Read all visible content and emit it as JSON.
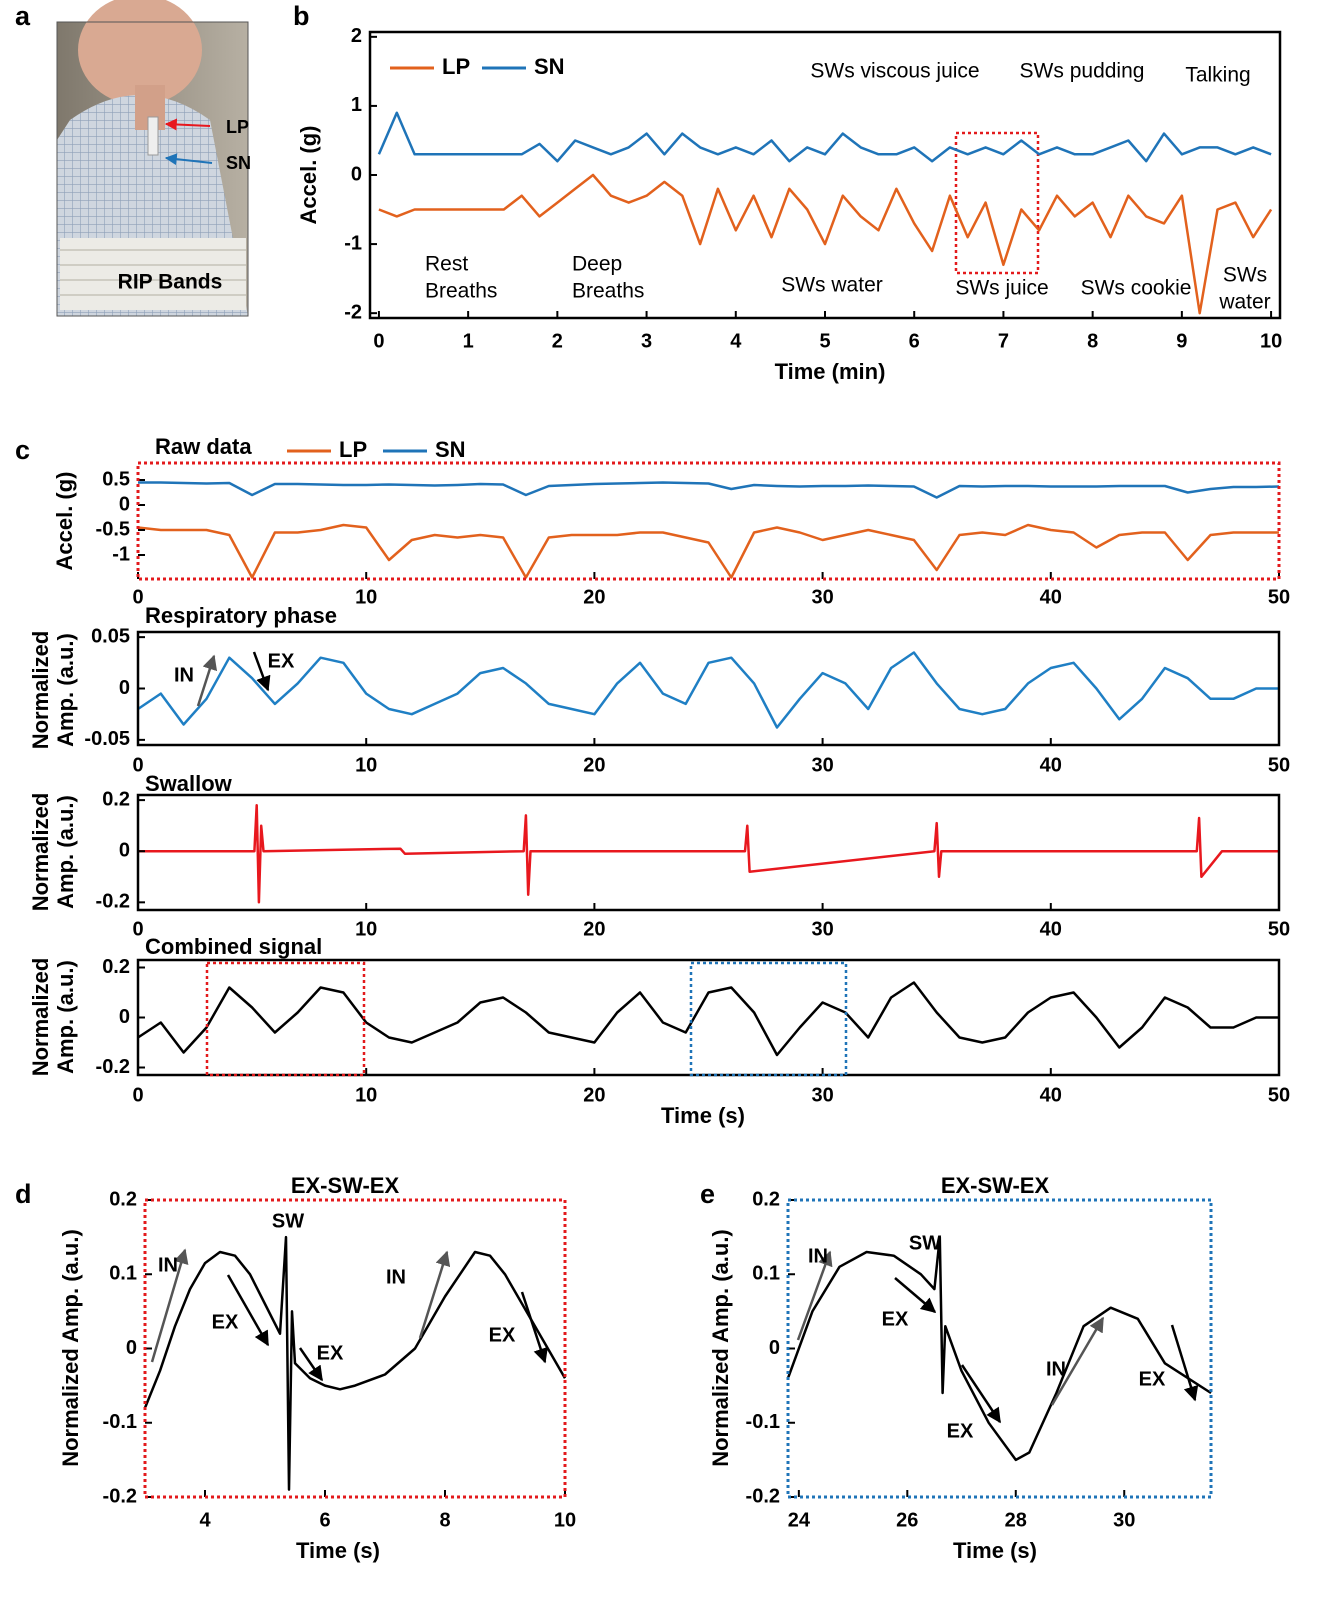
{
  "photo": {
    "panel_label": "a",
    "labels": [
      "LP",
      "SN",
      "RIP Bands"
    ]
  },
  "chart_data": [
    {
      "type": "line",
      "panel_label": "b",
      "x_label": "Time (min)",
      "y_label": "Accel. (g)",
      "x": [
        0,
        0.2,
        0.4,
        0.6,
        0.8,
        1,
        1.2,
        1.4,
        1.6,
        1.8,
        2,
        2.2,
        2.4,
        2.6,
        2.8,
        3,
        3.2,
        3.4,
        3.6,
        3.8,
        4,
        4.2,
        4.4,
        4.6,
        4.8,
        5,
        5.2,
        5.4,
        5.6,
        5.8,
        6,
        6.2,
        6.4,
        6.6,
        6.8,
        7,
        7.2,
        7.4,
        7.6,
        7.8,
        8,
        8.2,
        8.4,
        8.6,
        8.8,
        9,
        9.2,
        9.4,
        9.6,
        9.8,
        10
      ],
      "series": [
        {
          "name": "LP",
          "color": "#e2611d",
          "values": [
            -0.5,
            -0.6,
            -0.5,
            -0.5,
            -0.5,
            -0.5,
            -0.5,
            -0.5,
            -0.3,
            -0.6,
            -0.4,
            -0.2,
            0,
            -0.3,
            -0.4,
            -0.3,
            -0.1,
            -0.3,
            -1.0,
            -0.2,
            -0.8,
            -0.3,
            -0.9,
            -0.2,
            -0.5,
            -1.0,
            -0.3,
            -0.6,
            -0.8,
            -0.2,
            -0.7,
            -1.1,
            -0.3,
            -0.9,
            -0.4,
            -1.3,
            -0.5,
            -0.8,
            -0.3,
            -0.6,
            -0.4,
            -0.9,
            -0.3,
            -0.6,
            -0.7,
            -0.3,
            -2.0,
            -0.5,
            -0.4,
            -0.9,
            -0.5
          ]
        },
        {
          "name": "SN",
          "color": "#1f74b8",
          "values": [
            0.3,
            0.9,
            0.3,
            0.3,
            0.3,
            0.3,
            0.3,
            0.3,
            0.3,
            0.45,
            0.2,
            0.5,
            0.4,
            0.3,
            0.4,
            0.6,
            0.3,
            0.6,
            0.4,
            0.3,
            0.4,
            0.3,
            0.5,
            0.2,
            0.4,
            0.3,
            0.6,
            0.4,
            0.3,
            0.3,
            0.4,
            0.2,
            0.4,
            0.3,
            0.4,
            0.3,
            0.5,
            0.3,
            0.4,
            0.3,
            0.3,
            0.4,
            0.5,
            0.2,
            0.6,
            0.3,
            0.4,
            0.4,
            0.3,
            0.4,
            0.3
          ]
        }
      ],
      "xlim": [
        -0.1,
        10.1
      ],
      "ylim": [
        -2.07,
        2.07
      ],
      "xticks": [
        0,
        1,
        2,
        3,
        4,
        5,
        6,
        7,
        8,
        9,
        10
      ],
      "yticks": [
        -2,
        -1,
        0,
        1,
        2
      ],
      "annotations": [
        {
          "lines": [
            "SWs viscous juice"
          ]
        },
        {
          "lines": [
            "SWs pudding"
          ]
        },
        {
          "lines": [
            "Talking"
          ]
        },
        {
          "lines": [
            "Rest",
            "Breaths"
          ]
        },
        {
          "lines": [
            "Deep",
            "Breaths"
          ]
        },
        {
          "lines": [
            "SWs water"
          ]
        },
        {
          "lines": [
            "SWs juice"
          ]
        },
        {
          "lines": [
            "SWs cookie"
          ]
        },
        {
          "lines": [
            "SWs",
            "water"
          ]
        }
      ]
    },
    {
      "type": "line",
      "panel_label": "c",
      "title": "Raw data",
      "y_label": "Accel. (g)",
      "x": [
        0,
        1,
        2,
        3,
        4,
        5,
        6,
        7,
        8,
        9,
        10,
        11,
        12,
        13,
        14,
        15,
        16,
        17,
        18,
        19,
        20,
        21,
        22,
        23,
        24,
        25,
        26,
        27,
        28,
        29,
        30,
        31,
        32,
        33,
        34,
        35,
        36,
        37,
        38,
        39,
        40,
        41,
        42,
        43,
        44,
        45,
        46,
        47,
        48,
        49,
        50
      ],
      "series": [
        {
          "name": "LP",
          "color": "#e2611d",
          "values": [
            -0.45,
            -0.5,
            -0.5,
            -0.5,
            -0.6,
            -1.45,
            -0.55,
            -0.55,
            -0.5,
            -0.4,
            -0.45,
            -1.1,
            -0.7,
            -0.6,
            -0.65,
            -0.6,
            -0.65,
            -1.45,
            -0.65,
            -0.6,
            -0.6,
            -0.6,
            -0.55,
            -0.55,
            -0.65,
            -0.75,
            -1.45,
            -0.55,
            -0.45,
            -0.55,
            -0.7,
            -0.6,
            -0.5,
            -0.6,
            -0.7,
            -1.3,
            -0.6,
            -0.55,
            -0.6,
            -0.4,
            -0.5,
            -0.55,
            -0.85,
            -0.6,
            -0.55,
            -0.55,
            -1.1,
            -0.6,
            -0.55,
            -0.55,
            -0.55
          ]
        },
        {
          "name": "SN",
          "color": "#1f74b8",
          "values": [
            0.45,
            0.45,
            0.44,
            0.43,
            0.44,
            0.2,
            0.42,
            0.42,
            0.41,
            0.4,
            0.4,
            0.41,
            0.4,
            0.39,
            0.4,
            0.42,
            0.41,
            0.2,
            0.38,
            0.4,
            0.42,
            0.43,
            0.44,
            0.45,
            0.44,
            0.43,
            0.32,
            0.4,
            0.38,
            0.37,
            0.38,
            0.38,
            0.39,
            0.38,
            0.37,
            0.15,
            0.38,
            0.37,
            0.38,
            0.38,
            0.37,
            0.37,
            0.37,
            0.38,
            0.38,
            0.38,
            0.25,
            0.32,
            0.36,
            0.36,
            0.37
          ]
        }
      ],
      "xlim": [
        0,
        50
      ],
      "ylim": [
        -1.48,
        0.84
      ],
      "xticks": [
        0,
        10,
        20,
        30,
        40,
        50
      ],
      "yticks": [
        -1,
        -0.5,
        0,
        0.5
      ],
      "frame": {
        "color": "#e31a1c",
        "dash": true
      }
    },
    {
      "type": "line",
      "title": "Respiratory phase",
      "y_label_lines": [
        "Normalized",
        "Amp. (a.u.)"
      ],
      "x": [
        0,
        1,
        2,
        3,
        4,
        5,
        6,
        7,
        8,
        9,
        10,
        11,
        12,
        13,
        14,
        15,
        16,
        17,
        18,
        19,
        20,
        21,
        22,
        23,
        24,
        25,
        26,
        27,
        28,
        29,
        30,
        31,
        32,
        33,
        34,
        35,
        36,
        37,
        38,
        39,
        40,
        41,
        42,
        43,
        44,
        45,
        46,
        47,
        48,
        49,
        50
      ],
      "series": [
        {
          "color": "#1f7fc4",
          "values": [
            -0.02,
            -0.005,
            -0.035,
            -0.01,
            0.03,
            0.01,
            -0.015,
            0.005,
            0.03,
            0.025,
            -0.005,
            -0.02,
            -0.025,
            -0.015,
            -0.005,
            0.015,
            0.02,
            0.005,
            -0.015,
            -0.02,
            -0.025,
            0.005,
            0.025,
            -0.005,
            -0.015,
            0.025,
            0.03,
            0.005,
            -0.038,
            -0.01,
            0.015,
            0.005,
            -0.02,
            0.02,
            0.035,
            0.005,
            -0.02,
            -0.025,
            -0.02,
            0.005,
            0.02,
            0.025,
            0,
            -0.03,
            -0.01,
            0.02,
            0.01,
            -0.01,
            -0.01,
            0,
            0
          ]
        }
      ],
      "xlim": [
        0,
        50
      ],
      "ylim": [
        -0.055,
        0.055
      ],
      "xticks": [
        0,
        10,
        20,
        30,
        40,
        50
      ],
      "yticks": [
        -0.05,
        0,
        0.05
      ],
      "annotations": [
        {
          "lines": [
            "IN"
          ],
          "color": "#555555"
        },
        {
          "lines": [
            "EX"
          ]
        }
      ]
    },
    {
      "type": "line",
      "title": "Swallow",
      "y_label_lines": [
        "Normalized",
        "Amp. (a.u.)"
      ],
      "series": [
        {
          "color": "#e8181e",
          "x": [
            0,
            5.1,
            5.2,
            5.3,
            5.4,
            5.5,
            11.5,
            11.7,
            16.9,
            17.0,
            17.1,
            17.2,
            26.6,
            26.7,
            26.8,
            34.9,
            35.0,
            35.1,
            35.2,
            46.4,
            46.5,
            46.6,
            47.5,
            50
          ],
          "values": [
            0,
            0,
            0.18,
            -0.2,
            0.1,
            0,
            0.01,
            -0.01,
            0,
            0.14,
            -0.17,
            0,
            0,
            0.1,
            -0.08,
            0,
            0.11,
            -0.1,
            0,
            0,
            0.13,
            -0.1,
            0,
            0
          ]
        }
      ],
      "xlim": [
        0,
        50
      ],
      "ylim": [
        -0.23,
        0.22
      ],
      "xticks": [
        0,
        10,
        20,
        30,
        40,
        50
      ],
      "yticks": [
        -0.2,
        0,
        0.2
      ]
    },
    {
      "type": "line",
      "title": "Combined signal",
      "y_label_lines": [
        "Normalized",
        "Amp. (a.u.)"
      ],
      "x_label": "Time (s)",
      "x": [
        0,
        1,
        2,
        3,
        4,
        5,
        6,
        7,
        8,
        9,
        10,
        11,
        12,
        13,
        14,
        15,
        16,
        17,
        18,
        19,
        20,
        21,
        22,
        23,
        24,
        25,
        26,
        27,
        28,
        29,
        30,
        31,
        32,
        33,
        34,
        35,
        36,
        37,
        38,
        39,
        40,
        41,
        42,
        43,
        44,
        45,
        46,
        47,
        48,
        49,
        50
      ],
      "series": [
        {
          "color": "#000000",
          "values": [
            -0.08,
            -0.02,
            -0.14,
            -0.04,
            0.12,
            0.04,
            -0.06,
            0.02,
            0.12,
            0.1,
            -0.02,
            -0.08,
            -0.1,
            -0.06,
            -0.02,
            0.06,
            0.08,
            0.02,
            -0.06,
            -0.08,
            -0.1,
            0.02,
            0.1,
            -0.02,
            -0.06,
            0.1,
            0.12,
            0.02,
            -0.15,
            -0.04,
            0.06,
            0.02,
            -0.08,
            0.08,
            0.14,
            0.02,
            -0.08,
            -0.1,
            -0.08,
            0.02,
            0.08,
            0.1,
            0,
            -0.12,
            -0.04,
            0.08,
            0.04,
            -0.04,
            -0.04,
            0,
            0
          ]
        }
      ],
      "xlim": [
        0,
        50
      ],
      "ylim": [
        -0.23,
        0.23
      ],
      "xticks": [
        0,
        10,
        20,
        30,
        40,
        50
      ],
      "yticks": [
        -0.2,
        0,
        0.2
      ]
    },
    {
      "type": "line",
      "panel_label": "d",
      "title": "EX-SW-EX",
      "x_label": "Time (s)",
      "y_label": "Normalized Amp. (a.u.)",
      "x": [
        3,
        3.25,
        3.5,
        3.75,
        4,
        4.25,
        4.5,
        4.75,
        5,
        5.25,
        5.35,
        5.4,
        5.45,
        5.5,
        5.75,
        6,
        6.25,
        6.5,
        7,
        7.5,
        8,
        8.5,
        8.75,
        9,
        9.5,
        10
      ],
      "series": [
        {
          "color": "#000000",
          "values": [
            -0.08,
            -0.03,
            0.03,
            0.08,
            0.115,
            0.13,
            0.125,
            0.1,
            0.06,
            0.02,
            0.15,
            -0.19,
            0.05,
            -0.02,
            -0.04,
            -0.05,
            -0.055,
            -0.05,
            -0.035,
            0,
            0.07,
            0.13,
            0.125,
            0.1,
            0.03,
            -0.04
          ]
        }
      ],
      "xlim": [
        3,
        10
      ],
      "ylim": [
        -0.2,
        0.2
      ],
      "xticks": [
        4,
        6,
        8,
        10
      ],
      "yticks": [
        -0.2,
        -0.1,
        0,
        0.1,
        0.2
      ],
      "frame": {
        "color": "#e31a1c",
        "dash": true
      },
      "annotations": [
        {
          "lines": [
            "SW"
          ],
          "color": "#e8181e"
        },
        {
          "lines": [
            "IN"
          ],
          "color": "#555555"
        },
        {
          "lines": [
            "EX"
          ]
        },
        {
          "lines": [
            "EX"
          ]
        },
        {
          "lines": [
            "IN"
          ],
          "color": "#555555"
        },
        {
          "lines": [
            "EX"
          ]
        }
      ]
    },
    {
      "type": "line",
      "panel_label": "e",
      "title": "EX-SW-EX",
      "x_label": "Time (s)",
      "y_label": "Normalized Amp. (a.u.)",
      "x": [
        23.8,
        24.25,
        24.75,
        25.25,
        25.75,
        26.25,
        26.5,
        26.6,
        26.65,
        26.7,
        27,
        27.5,
        28,
        28.25,
        28.75,
        29.25,
        29.75,
        30.25,
        30.75,
        31.6
      ],
      "series": [
        {
          "color": "#000000",
          "values": [
            -0.04,
            0.05,
            0.11,
            0.13,
            0.125,
            0.1,
            0.08,
            0.15,
            -0.06,
            0.03,
            -0.03,
            -0.1,
            -0.15,
            -0.14,
            -0.06,
            0.03,
            0.055,
            0.04,
            -0.02,
            -0.06
          ]
        }
      ],
      "xlim": [
        23.8,
        31.6
      ],
      "ylim": [
        -0.2,
        0.2
      ],
      "xticks": [
        24,
        26,
        28,
        30
      ],
      "yticks": [
        -0.2,
        -0.1,
        0,
        0.1,
        0.2
      ],
      "frame": {
        "color": "#1f74b8",
        "dash": true
      },
      "annotations": [
        {
          "lines": [
            "SW"
          ],
          "color": "#e8181e"
        },
        {
          "lines": [
            "IN"
          ],
          "color": "#555555"
        },
        {
          "lines": [
            "EX"
          ]
        },
        {
          "lines": [
            "EX"
          ]
        },
        {
          "lines": [
            "IN"
          ],
          "color": "#555555"
        },
        {
          "lines": [
            "EX"
          ]
        }
      ]
    }
  ]
}
